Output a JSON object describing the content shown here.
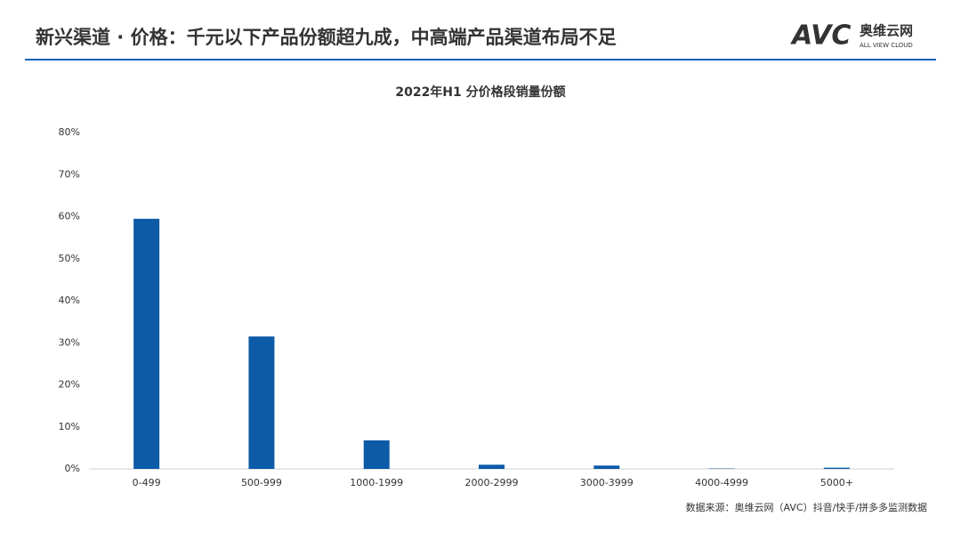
{
  "header": {
    "title": "新兴渠道 · 价格：千元以下产品份额超九成，中高端产品渠道布局不足",
    "logo_mark": "AVC",
    "logo_name": "奥维云网",
    "logo_sub": "ALL VIEW CLOUD"
  },
  "chart_data": {
    "type": "bar",
    "title": "2022年H1 分价格段销量份额",
    "categories": [
      "0-499",
      "500-999",
      "1000-1999",
      "2000-2999",
      "3000-3999",
      "4000-4999",
      "5000+"
    ],
    "values": [
      59.5,
      31.5,
      6.8,
      1.0,
      0.8,
      0.1,
      0.3
    ],
    "color": "#0d5aa7",
    "ylim": [
      0,
      80
    ],
    "yticks": [
      {
        "value": 0,
        "label": "0%"
      },
      {
        "value": 10,
        "label": "10%"
      },
      {
        "value": 20,
        "label": "20%"
      },
      {
        "value": 30,
        "label": "30%"
      },
      {
        "value": 40,
        "label": "40%"
      },
      {
        "value": 50,
        "label": "50%"
      },
      {
        "value": 60,
        "label": "60%"
      },
      {
        "value": 70,
        "label": "70%"
      },
      {
        "value": 80,
        "label": "80%"
      }
    ],
    "grid": false
  },
  "source": "数据来源：奥维云网（AVC）抖音/快手/拼多多监测数据"
}
